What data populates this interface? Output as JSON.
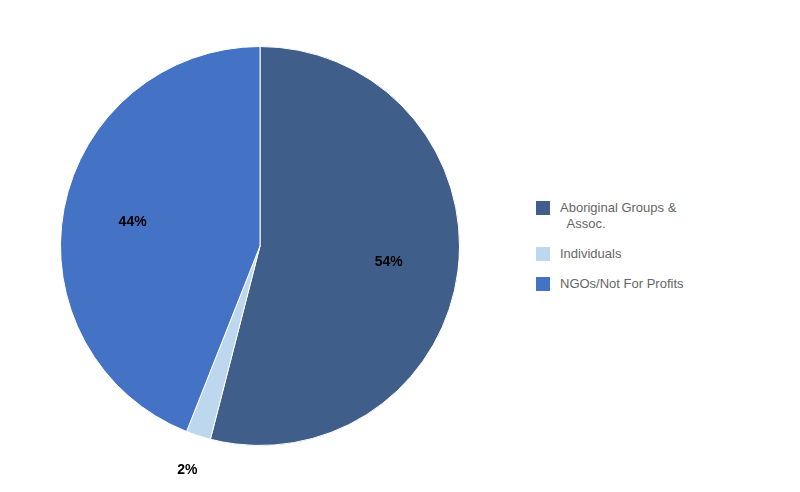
{
  "chart_data": {
    "type": "pie",
    "categories": [
      "Aboriginal Groups &\n  Assoc.",
      "Individuals",
      "NGOs/Not For Profits"
    ],
    "values": [
      54,
      2,
      44
    ],
    "value_labels": [
      "54%",
      "2%",
      "44%"
    ],
    "colors": [
      "#3F5F8A",
      "#BDD7EE",
      "#4472C4"
    ],
    "data_labels": true,
    "legend": "right"
  }
}
